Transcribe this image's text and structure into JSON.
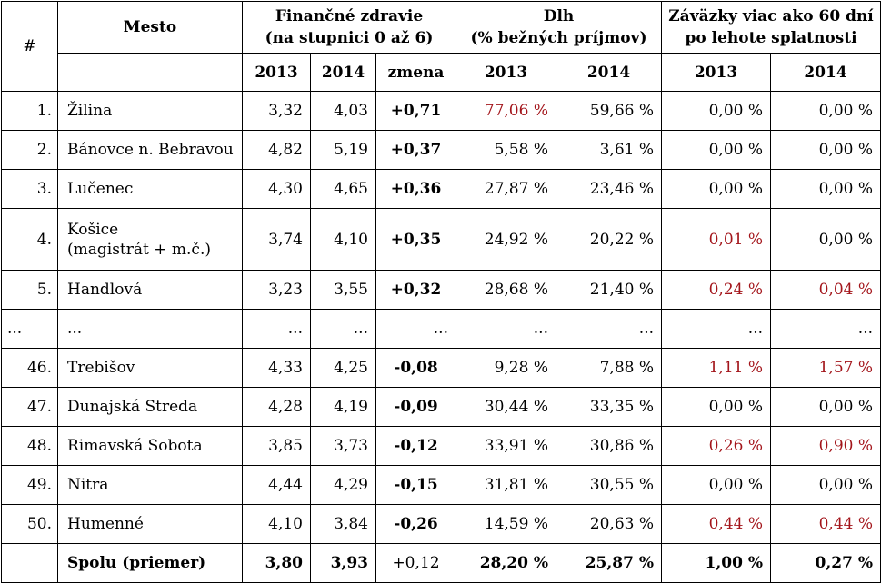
{
  "header": {
    "hash": "#",
    "city": "Mesto",
    "group_health": [
      "Finančné zdravie",
      "(na stupnici 0 až 6)"
    ],
    "group_debt": [
      "Dlh",
      "(% bežných príjmov)"
    ],
    "group_liab": [
      "Záväzky viac ako 60 dní",
      "po lehote splatnosti"
    ],
    "sub": [
      "2013",
      "2014",
      "zmena",
      "2013",
      "2014",
      "2013",
      "2014"
    ]
  },
  "rows": [
    {
      "rank": "1.",
      "city": [
        "Žilina"
      ],
      "h13": "3,32",
      "h14": "4,03",
      "chg": "+0,71",
      "d13": "77,06 %",
      "d14": "59,66 %",
      "l13": "0,00 %",
      "l14": "0,00 %",
      "red": [
        false,
        false,
        false,
        false,
        false,
        false,
        false
      ]
    },
    {
      "rank": "2.",
      "city": [
        "Bánovce n. Bebravou"
      ],
      "h13": "4,82",
      "h14": "5,19",
      "chg": "+0,37",
      "d13": "5,58 %",
      "d14": "3,61 %",
      "l13": "0,00 %",
      "l14": "0,00 %"
    },
    {
      "rank": "3.",
      "city": [
        "Lučenec"
      ],
      "h13": "4,30",
      "h14": "4,65",
      "chg": "+0,36",
      "d13": "27,87 %",
      "d14": "23,46 %",
      "l13": "0,00 %",
      "l14": "0,00 %"
    },
    {
      "rank": "4.",
      "city": [
        "Košice",
        "(magistrát + m.č.)"
      ],
      "h13": "3,74",
      "h14": "4,10",
      "chg": "+0,35",
      "d13": "24,92 %",
      "d14": "20,22 %",
      "l13": "0,01 %",
      "l14": "0,00 %"
    },
    {
      "rank": "5.",
      "city": [
        "Handlová"
      ],
      "h13": "3,23",
      "h14": "3,55",
      "chg": "+0,32",
      "d13": "28,68 %",
      "d14": "21,40 %",
      "l13": "0,24 %",
      "l14": "0,04 %"
    },
    {
      "rank": "...",
      "city": [
        "..."
      ],
      "h13": "...",
      "h14": "...",
      "chg": "...",
      "d13": "...",
      "d14": "...",
      "l13": "...",
      "l14": "..."
    },
    {
      "rank": "46.",
      "city": [
        "Trebišov"
      ],
      "h13": "4,33",
      "h14": "4,25",
      "chg": "-0,08",
      "d13": "9,28 %",
      "d14": "7,88 %",
      "l13": "1,11 %",
      "l14": "1,57 %"
    },
    {
      "rank": "47.",
      "city": [
        "Dunajská Streda"
      ],
      "h13": "4,28",
      "h14": "4,19",
      "chg": "-0,09",
      "d13": "30,44 %",
      "d14": "33,35 %",
      "l13": "0,00 %",
      "l14": "0,00 %"
    },
    {
      "rank": "48.",
      "city": [
        "Rimavská Sobota"
      ],
      "h13": "3,85",
      "h14": "3,73",
      "chg": "-0,12",
      "d13": "33,91 %",
      "d14": "30,86 %",
      "l13": "0,26 %",
      "l14": "0,90 %"
    },
    {
      "rank": "49.",
      "city": [
        "Nitra"
      ],
      "h13": "4,44",
      "h14": "4,29",
      "chg": "-0,15",
      "d13": "31,81 %",
      "d14": "30,55 %",
      "l13": "0,00 %",
      "l14": "0,00 %"
    },
    {
      "rank": "50.",
      "city": [
        "Humenné"
      ],
      "h13": "4,10",
      "h14": "3,84",
      "chg": "-0,26",
      "d13": "14,59 %",
      "d14": "20,63 %",
      "l13": "0,44 %",
      "l14": "0,44 %"
    }
  ],
  "total": {
    "label": "Spolu (priemer)",
    "h13": "3,80",
    "h14": "3,93",
    "chg": "+0,12",
    "d13": "28,20 %",
    "d14": "25,87 %",
    "l13": "1,00 %",
    "l14": "0,27 %"
  },
  "colors": {
    "highlight": "#a3151b",
    "text": "#000000"
  }
}
